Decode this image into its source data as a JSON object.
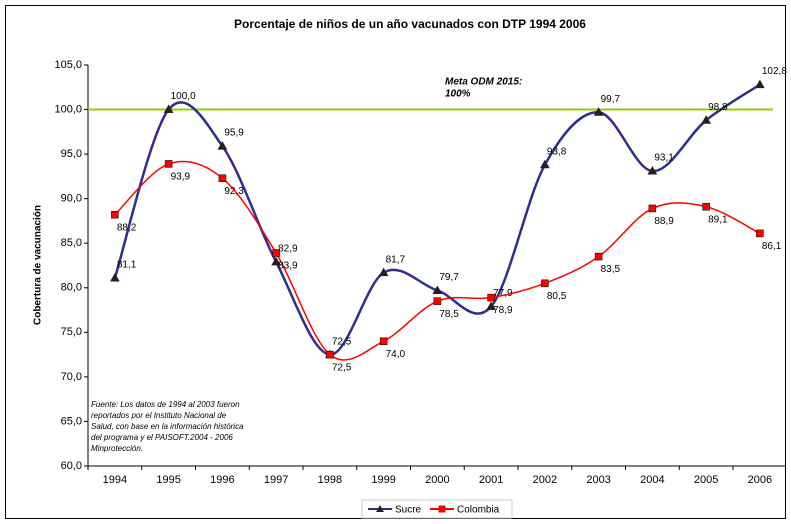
{
  "chart_data": {
    "type": "line",
    "title": "Porcentaje de niños de un año vacunados con DTP 1994 2006",
    "y_label": "Cobertura de vacunación",
    "categories": [
      "1994",
      "1995",
      "1996",
      "1997",
      "1998",
      "1999",
      "2000",
      "2001",
      "2002",
      "2003",
      "2004",
      "2005",
      "2006"
    ],
    "series": [
      {
        "name": "Sucre",
        "color": "#2e2e8f",
        "marker": "triangle",
        "values": [
          81.1,
          100.0,
          95.9,
          82.9,
          72.5,
          81.7,
          79.7,
          77.9,
          93.8,
          99.7,
          93.1,
          98.8,
          102.8
        ],
        "value_labels": [
          "81,1",
          "100,0",
          "95,9",
          "82,9",
          "72,5",
          "81,7",
          "79,7",
          "77,9",
          "93,8",
          "99,7",
          "93,1",
          "98,8",
          "102,8"
        ]
      },
      {
        "name": "Colombia",
        "color": "#ff0000",
        "marker": "square",
        "values": [
          88.2,
          93.9,
          92.3,
          83.9,
          72.5,
          74.0,
          78.5,
          78.9,
          80.5,
          83.5,
          88.9,
          89.1,
          86.1
        ],
        "value_labels": [
          "88,2",
          "93,9",
          "92,3",
          "83,9",
          "72,5",
          "74,0",
          "78,5",
          "78,9",
          "80,5",
          "83,5",
          "88,9",
          "89,1",
          "86,1"
        ]
      }
    ],
    "reference_line": {
      "value": 100,
      "color": "#99cc00"
    },
    "annotation": [
      "Meta ODM 2015:",
      "100%"
    ],
    "footnote": [
      "Fuente: Los datos de 1994 al 2003 fueron",
      "reportados por el Instituto Nacional de",
      "Salud, con base en la información histórica",
      "del programa y el PAISOFT.2004 - 2006",
      "Minprotección."
    ],
    "ylim": [
      60,
      105
    ],
    "yticks": [
      {
        "value": 60,
        "label": "60,0"
      },
      {
        "value": 65,
        "label": "65,0"
      },
      {
        "value": 70,
        "label": "70,0"
      },
      {
        "value": 75,
        "label": "75,0"
      },
      {
        "value": 80,
        "label": "80,0"
      },
      {
        "value": 85,
        "label": "85,0"
      },
      {
        "value": 90,
        "label": "90,0"
      },
      {
        "value": 95,
        "label": "95,0"
      },
      {
        "value": 100,
        "label": "100,0"
      },
      {
        "value": 105,
        "label": "105,0"
      }
    ],
    "legend": "bottom"
  }
}
